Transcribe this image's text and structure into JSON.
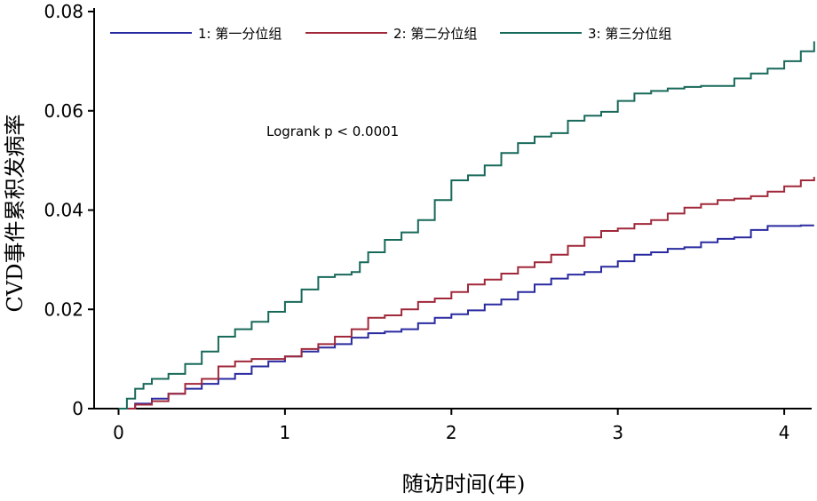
{
  "chart_data": {
    "type": "line",
    "title": "",
    "xlabel": "随访时间(年)",
    "ylabel": "CVD事件累积发病率",
    "xlim": [
      -0.15,
      4.18
    ],
    "ylim": [
      0,
      0.08
    ],
    "x_ticks": [
      0,
      1,
      2,
      3,
      4
    ],
    "x_tick_labels": [
      "0",
      "1",
      "2",
      "3",
      "4"
    ],
    "y_ticks": [
      0,
      0.02,
      0.04,
      0.06,
      0.08
    ],
    "y_tick_labels": [
      "0",
      "0.02",
      "0.04",
      "0.06",
      "0.08"
    ],
    "grid": false,
    "legend_position": "top",
    "annotation": "Logrank p < 0.0001",
    "series": [
      {
        "name": "1: 第一分位组",
        "color": "#2a2aa0",
        "x": [
          0,
          0.1,
          0.2,
          0.3,
          0.4,
          0.5,
          0.6,
          0.7,
          0.8,
          0.9,
          1.0,
          1.1,
          1.2,
          1.3,
          1.4,
          1.5,
          1.6,
          1.7,
          1.8,
          1.9,
          2.0,
          2.1,
          2.2,
          2.3,
          2.4,
          2.5,
          2.6,
          2.7,
          2.8,
          2.9,
          3.0,
          3.1,
          3.2,
          3.3,
          3.4,
          3.5,
          3.6,
          3.7,
          3.8,
          3.9,
          4.0,
          4.1,
          4.18
        ],
        "y": [
          0,
          0.001,
          0.002,
          0.003,
          0.004,
          0.005,
          0.006,
          0.007,
          0.0085,
          0.0095,
          0.0105,
          0.0115,
          0.0123,
          0.013,
          0.0143,
          0.0152,
          0.0155,
          0.016,
          0.0172,
          0.0183,
          0.019,
          0.0198,
          0.021,
          0.022,
          0.0235,
          0.025,
          0.0262,
          0.027,
          0.0275,
          0.0286,
          0.0297,
          0.031,
          0.0315,
          0.0322,
          0.0325,
          0.0335,
          0.0342,
          0.0345,
          0.036,
          0.0368,
          0.0368,
          0.0369,
          0.0369
        ]
      },
      {
        "name": "2: 第二分位组",
        "color": "#a0283a",
        "x": [
          0,
          0.1,
          0.2,
          0.3,
          0.4,
          0.5,
          0.6,
          0.7,
          0.8,
          0.9,
          1.0,
          1.1,
          1.2,
          1.3,
          1.4,
          1.5,
          1.6,
          1.7,
          1.8,
          1.9,
          2.0,
          2.1,
          2.2,
          2.3,
          2.4,
          2.5,
          2.6,
          2.7,
          2.8,
          2.9,
          3.0,
          3.1,
          3.2,
          3.3,
          3.4,
          3.5,
          3.6,
          3.7,
          3.8,
          3.9,
          4.0,
          4.1,
          4.18
        ],
        "y": [
          0,
          0.0008,
          0.0015,
          0.003,
          0.005,
          0.006,
          0.0085,
          0.0095,
          0.01,
          0.01,
          0.0105,
          0.012,
          0.013,
          0.0145,
          0.016,
          0.0183,
          0.0188,
          0.02,
          0.0215,
          0.0222,
          0.0235,
          0.025,
          0.026,
          0.0272,
          0.0285,
          0.0295,
          0.031,
          0.0328,
          0.0345,
          0.0358,
          0.0363,
          0.0372,
          0.038,
          0.0393,
          0.0405,
          0.0412,
          0.042,
          0.0423,
          0.0428,
          0.0437,
          0.0448,
          0.046,
          0.0467
        ]
      },
      {
        "name": "3: 第三分位组",
        "color": "#17695a",
        "x": [
          0,
          0.05,
          0.1,
          0.15,
          0.2,
          0.3,
          0.4,
          0.5,
          0.6,
          0.7,
          0.8,
          0.9,
          1.0,
          1.1,
          1.2,
          1.3,
          1.4,
          1.45,
          1.5,
          1.6,
          1.7,
          1.8,
          1.9,
          2.0,
          2.1,
          2.2,
          2.3,
          2.4,
          2.5,
          2.6,
          2.7,
          2.8,
          2.9,
          3.0,
          3.1,
          3.2,
          3.3,
          3.4,
          3.5,
          3.6,
          3.7,
          3.8,
          3.9,
          4.0,
          4.1,
          4.18
        ],
        "y": [
          0,
          0.002,
          0.004,
          0.005,
          0.006,
          0.007,
          0.009,
          0.0115,
          0.0145,
          0.016,
          0.0175,
          0.0195,
          0.0215,
          0.024,
          0.0265,
          0.027,
          0.0275,
          0.0295,
          0.0315,
          0.034,
          0.0355,
          0.038,
          0.042,
          0.046,
          0.047,
          0.049,
          0.0515,
          0.0535,
          0.0548,
          0.0555,
          0.058,
          0.059,
          0.0598,
          0.062,
          0.0635,
          0.064,
          0.0645,
          0.0648,
          0.065,
          0.065,
          0.0665,
          0.0675,
          0.0685,
          0.07,
          0.072,
          0.074
        ]
      }
    ]
  }
}
